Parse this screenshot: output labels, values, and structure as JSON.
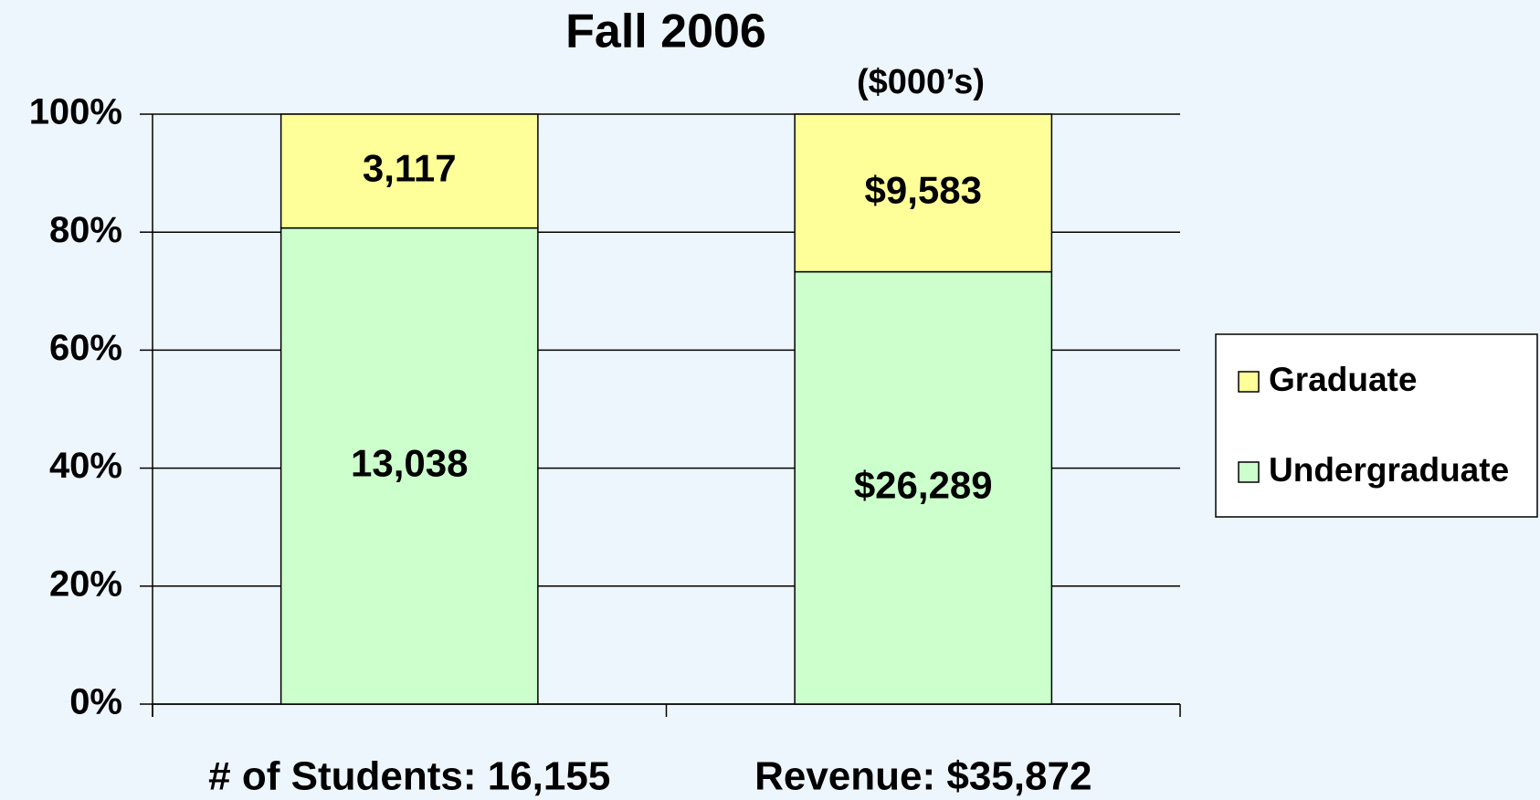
{
  "chart_data": {
    "type": "bar",
    "stacking": "percent",
    "title": "Fall 2006",
    "annotation": "($000’s)",
    "categories": [
      "# of Students: 16,155",
      "Revenue: $35,872"
    ],
    "series": [
      {
        "name": "Undergraduate",
        "color": "#ccffcc",
        "values": [
          13038,
          26289
        ],
        "value_labels": [
          "13,038",
          "$26,289"
        ]
      },
      {
        "name": "Graduate",
        "color": "#ffff99",
        "values": [
          3117,
          9583
        ],
        "value_labels": [
          "3,117",
          "$9,583"
        ]
      }
    ],
    "ylim": [
      0,
      100
    ],
    "yticks": [
      {
        "value": 0,
        "label": "0%"
      },
      {
        "value": 20,
        "label": "20%"
      },
      {
        "value": 40,
        "label": "40%"
      },
      {
        "value": 60,
        "label": "60%"
      },
      {
        "value": 80,
        "label": "80%"
      },
      {
        "value": 100,
        "label": "100%"
      }
    ],
    "grid": true,
    "legend": "right"
  }
}
